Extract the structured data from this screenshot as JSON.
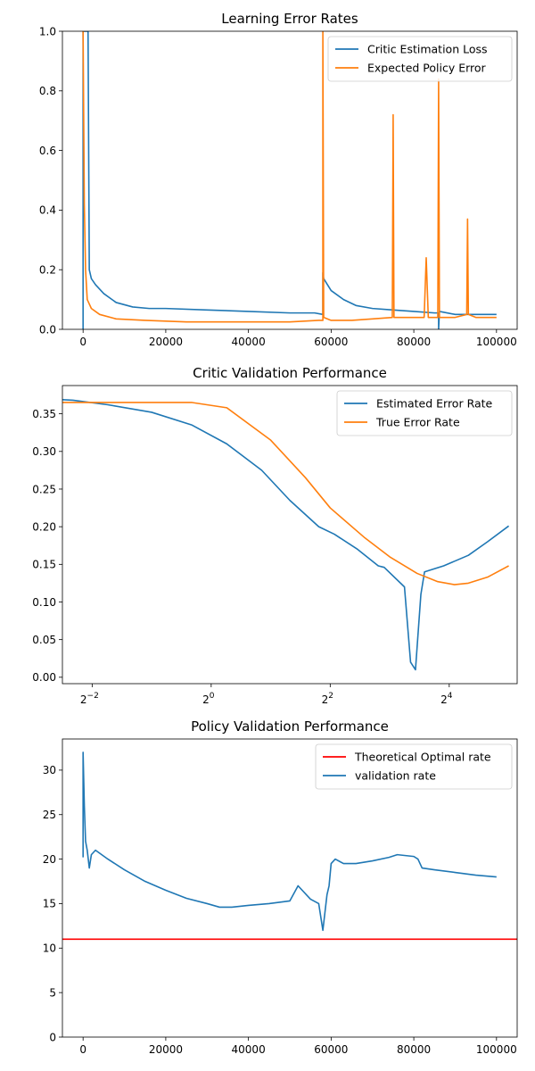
{
  "chart_data": [
    {
      "type": "line",
      "title": "Learning Error Rates",
      "xlabel": "",
      "ylabel": "",
      "xlim": [
        -5000,
        105000
      ],
      "ylim": [
        0,
        1.0
      ],
      "xscale": "linear",
      "grid": false,
      "legend_loc": "upper right",
      "xticks": [
        0,
        20000,
        40000,
        60000,
        80000,
        100000
      ],
      "xtick_labels": [
        "0",
        "20000",
        "40000",
        "60000",
        "80000",
        "100000"
      ],
      "yticks": [
        0,
        0.2,
        0.4,
        0.6,
        0.8,
        1.0
      ],
      "ytick_labels": [
        "0.0",
        "0.2",
        "0.4",
        "0.6",
        "0.8",
        "1.0"
      ],
      "series": [
        {
          "name": "Critic Estimation Loss",
          "color": "#1f77b4",
          "x": [
            0,
            0,
            500,
            1000,
            1200,
            1500,
            2000,
            3000,
            5000,
            8000,
            12000,
            16000,
            20000,
            30000,
            40000,
            50000,
            56000,
            58000,
            58000,
            58200,
            60000,
            63000,
            66000,
            70000,
            75000,
            80000,
            85000,
            86000,
            86000,
            86200,
            90000,
            95000,
            100000
          ],
          "y": [
            0,
            1.0,
            1.0,
            1.0,
            1.0,
            0.2,
            0.17,
            0.15,
            0.12,
            0.09,
            0.075,
            0.07,
            0.07,
            0.065,
            0.06,
            0.055,
            0.055,
            0.05,
            0.19,
            0.17,
            0.13,
            0.1,
            0.08,
            0.07,
            0.065,
            0.06,
            0.055,
            0.055,
            0.0,
            0.06,
            0.05,
            0.05,
            0.05
          ]
        },
        {
          "name": "Expected Policy Error",
          "color": "#ff7f0e",
          "x": [
            0,
            0,
            300,
            600,
            1000,
            2000,
            4000,
            8000,
            15000,
            25000,
            40000,
            50000,
            57000,
            58000,
            58000,
            58200,
            60000,
            65000,
            70000,
            74800,
            75000,
            75200,
            80000,
            82500,
            83000,
            83500,
            85800,
            86000,
            86200,
            90000,
            92800,
            93000,
            93200,
            95000,
            100000
          ],
          "y": [
            1.0,
            1.0,
            0.42,
            0.2,
            0.1,
            0.07,
            0.05,
            0.035,
            0.03,
            0.025,
            0.025,
            0.025,
            0.03,
            0.03,
            1.0,
            0.04,
            0.03,
            0.03,
            0.035,
            0.04,
            0.72,
            0.04,
            0.04,
            0.04,
            0.24,
            0.04,
            0.04,
            0.84,
            0.04,
            0.04,
            0.05,
            0.37,
            0.05,
            0.04,
            0.04
          ]
        }
      ]
    },
    {
      "type": "line",
      "title": "Critic Validation Performance",
      "xlabel": "",
      "ylabel": "",
      "xscale": "log2",
      "xlim": [
        0.1768,
        35.3
      ],
      "ylim": [
        -0.0085,
        0.3875
      ],
      "grid": false,
      "legend_loc": "upper right",
      "xticks": [
        0.25,
        1,
        4,
        16
      ],
      "xtick_labels": [
        {
          "base": "2",
          "exp": "−2"
        },
        {
          "base": "2",
          "exp": "0"
        },
        {
          "base": "2",
          "exp": "2"
        },
        {
          "base": "2",
          "exp": "4"
        }
      ],
      "yticks": [
        0.0,
        0.05,
        0.1,
        0.15,
        0.2,
        0.25,
        0.3,
        0.35
      ],
      "ytick_labels": [
        "0.00",
        "0.05",
        "0.10",
        "0.15",
        "0.20",
        "0.25",
        "0.30",
        "0.35"
      ],
      "series": [
        {
          "name": "Estimated Error Rate",
          "color": "#1f77b4",
          "x": [
            0.125,
            0.2,
            0.3,
            0.5,
            0.8,
            1.2,
            1.8,
            2.5,
            3.5,
            4.2,
            5.5,
            7.0,
            7.5,
            9.5,
            10.2,
            10.8,
            11.5,
            12.0,
            15.0,
            20.0,
            25.0,
            32.0
          ],
          "y": [
            0.371,
            0.368,
            0.362,
            0.352,
            0.335,
            0.31,
            0.275,
            0.235,
            0.2,
            0.19,
            0.17,
            0.148,
            0.146,
            0.12,
            0.02,
            0.01,
            0.11,
            0.14,
            0.148,
            0.162,
            0.18,
            0.201
          ]
        },
        {
          "name": "True Error Rate",
          "color": "#ff7f0e",
          "x": [
            0.125,
            0.25,
            0.5,
            0.8,
            1.2,
            2.0,
            3.0,
            4.0,
            6.0,
            8.0,
            11.0,
            14.0,
            17.0,
            20.0,
            25.0,
            32.0
          ],
          "y": [
            0.365,
            0.365,
            0.365,
            0.365,
            0.358,
            0.315,
            0.265,
            0.225,
            0.185,
            0.16,
            0.138,
            0.127,
            0.123,
            0.125,
            0.133,
            0.148
          ]
        }
      ]
    },
    {
      "type": "line",
      "title": "Policy Validation Performance",
      "xlabel": "",
      "ylabel": "",
      "xlim": [
        -5000,
        105000
      ],
      "ylim": [
        0,
        33.5
      ],
      "xscale": "linear",
      "grid": false,
      "legend_loc": "upper right",
      "xticks": [
        0,
        20000,
        40000,
        60000,
        80000,
        100000
      ],
      "xtick_labels": [
        "0",
        "20000",
        "40000",
        "60000",
        "80000",
        "100000"
      ],
      "yticks": [
        0,
        5,
        10,
        15,
        20,
        25,
        30
      ],
      "ytick_labels": [
        "0",
        "5",
        "10",
        "15",
        "20",
        "25",
        "30"
      ],
      "series": [
        {
          "name": "Theoretical Optimal rate",
          "color": "#ff0000",
          "hline": 11.0
        },
        {
          "name": "validation rate",
          "color": "#1f77b4",
          "x": [
            0,
            0,
            300,
            600,
            1000,
            1500,
            2000,
            3000,
            6000,
            10000,
            15000,
            20000,
            25000,
            30000,
            33000,
            36000,
            40000,
            45000,
            50000,
            52000,
            55000,
            57000,
            58000,
            58500,
            59000,
            59500,
            60000,
            61000,
            63000,
            66000,
            70000,
            74000,
            76000,
            80000,
            81000,
            82000,
            85000,
            90000,
            95000,
            100000
          ],
          "y": [
            20.2,
            32.0,
            26.0,
            22.0,
            21.0,
            19.0,
            20.5,
            21.0,
            20.0,
            18.8,
            17.5,
            16.5,
            15.6,
            15.0,
            14.6,
            14.6,
            14.8,
            15.0,
            15.3,
            17.0,
            15.5,
            15.0,
            12.0,
            14.0,
            16.0,
            17.0,
            19.5,
            20.0,
            19.5,
            19.5,
            19.8,
            20.2,
            20.5,
            20.3,
            20.0,
            19.0,
            18.8,
            18.5,
            18.2,
            18.0
          ]
        }
      ]
    }
  ]
}
